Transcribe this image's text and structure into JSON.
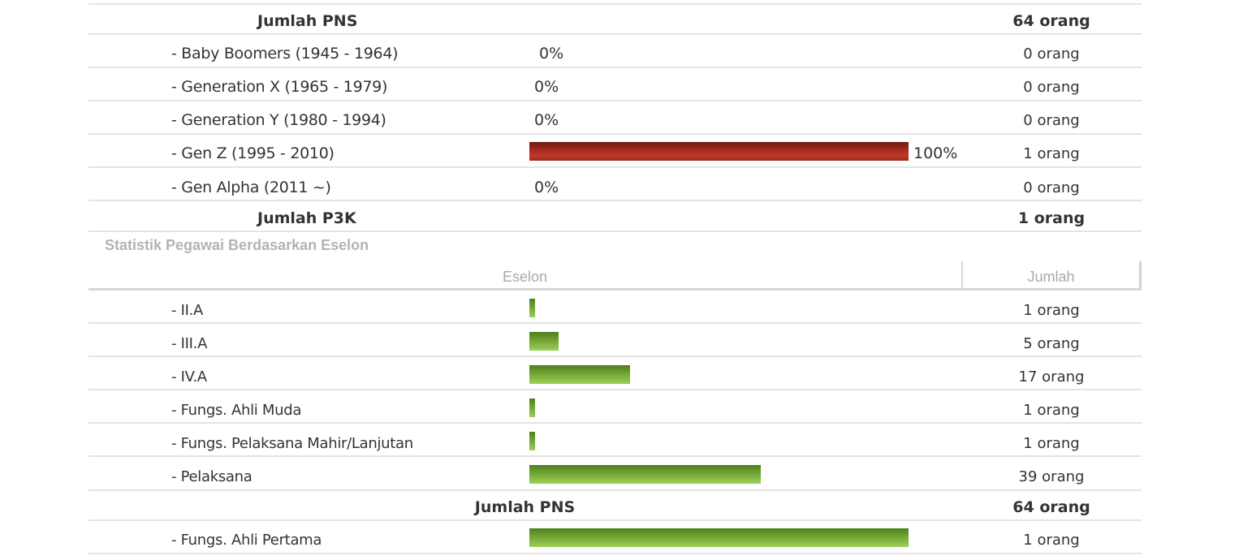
{
  "colors": {
    "generation_bar": "#a52a1e",
    "eselon_bar": "#7cb342",
    "section_title": "#b3b3b3"
  },
  "generation_table": {
    "total_pns_label": "Jumlah PNS",
    "total_pns_value": "64 orang",
    "rows": [
      {
        "label": "- Baby Boomers (1945 - 1964)",
        "percent_text": "0%",
        "percent": 0,
        "count": "0 orang"
      },
      {
        "label": "- Generation X (1965 - 1979)",
        "percent_text": "0%",
        "percent": 0,
        "count": "0 orang"
      },
      {
        "label": "- Generation Y (1980 - 1994)",
        "percent_text": "0%",
        "percent": 0,
        "count": "0 orang"
      },
      {
        "label": "- Gen Z (1995 - 2010)",
        "percent_text": "100%",
        "percent": 100,
        "count": "1 orang"
      },
      {
        "label": "- Gen Alpha (2011 ~)",
        "percent_text": "0%",
        "percent": 0,
        "count": "0 orang"
      }
    ],
    "total_p3k_label": "Jumlah P3K",
    "total_p3k_value": "1 orang"
  },
  "eselon_section": {
    "title": "Statistik Pegawai Berdasarkan Eselon",
    "col_eselon": "Eselon",
    "col_jumlah": "Jumlah",
    "rows": [
      {
        "label": "- II.A",
        "count": "1 orang",
        "value": 1
      },
      {
        "label": "- III.A",
        "count": "5 orang",
        "value": 5
      },
      {
        "label": "- IV.A",
        "count": "17 orang",
        "value": 17
      },
      {
        "label": "- Fungs. Ahli Muda",
        "count": "1 orang",
        "value": 1
      },
      {
        "label": "- Fungs. Pelaksana Mahir/Lanjutan",
        "count": "1 orang",
        "value": 1
      },
      {
        "label": "- Pelaksana",
        "count": "39 orang",
        "value": 39
      }
    ],
    "total_pns_label": "Jumlah PNS",
    "total_pns_value": "64 orang",
    "p3k_rows": [
      {
        "label": "- Fungs. Ahli Pertama",
        "count": "1 orang",
        "value": 1
      }
    ]
  }
}
